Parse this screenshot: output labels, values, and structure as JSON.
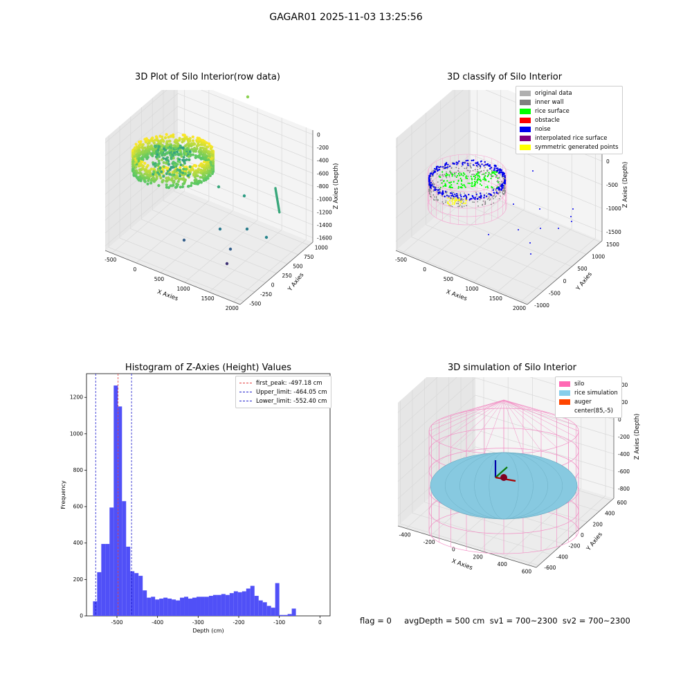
{
  "suptitle": "GAGAR01 2025-11-03 13:25:56",
  "status_text": "flag = 0     avgDepth = 500 cm  sv1 = 700~2300  sv2 = 700~2300",
  "colors": {
    "hist_bar": "#5050f7",
    "first_peak_line": "#e33a3a",
    "limit_line": "#1a1acc",
    "pane": "#f2f2f2",
    "grid": "#d8d8d8",
    "silo_wire": "#f28cc3",
    "rice_sim": "#87c9e0"
  },
  "chart_data": [
    {
      "type": "scatter",
      "projection": "3d",
      "title": "3D Plot of Silo Interior(row data)",
      "xlabel": "X Axies",
      "ylabel": "Y Axies",
      "zlabel": "Z Axies (Depth)",
      "xticks": [
        "-500",
        "0",
        "500",
        "1000",
        "1500",
        "2000"
      ],
      "yticks": [
        "-500",
        "-250",
        "0",
        "250",
        "500",
        "750",
        "1000"
      ],
      "zticks": [
        "0",
        "-200",
        "-400",
        "-600",
        "-800",
        "-1000",
        "-1200",
        "-1400",
        "-1600"
      ],
      "colormap": "viridis",
      "xlim": [
        -600,
        2100
      ],
      "ylim": [
        -600,
        1100
      ],
      "zlim": [
        -1650,
        50
      ]
    },
    {
      "type": "scatter",
      "projection": "3d",
      "title": "3D classify of Silo Interior",
      "xlabel": "X Axies",
      "ylabel": "Y Axies",
      "zlabel": "Z Axies (Depth)",
      "xticks": [
        "-500",
        "0",
        "500",
        "1000",
        "1500",
        "2000"
      ],
      "yticks": [
        "-1000",
        "-500",
        "0",
        "500",
        "1000",
        "1500"
      ],
      "zticks": [
        "500",
        "0",
        "-500",
        "-1000",
        "-1500"
      ],
      "legend": [
        {
          "label": "original data",
          "color": "#b0b0b0"
        },
        {
          "label": "inner wall",
          "color": "#808080"
        },
        {
          "label": "rice surface",
          "color": "#00ff00"
        },
        {
          "label": "obstacle",
          "color": "#ff0000"
        },
        {
          "label": "noise",
          "color": "#0000ee"
        },
        {
          "label": "interpolated rice surface",
          "color": "#800080"
        },
        {
          "label": "symmetric generated points",
          "color": "#ffff00"
        }
      ],
      "legend_loc": "upper right"
    },
    {
      "type": "bar",
      "title": "Histogram of Z-Axies (Height) Values",
      "xlabel": "Depth (cm)",
      "ylabel": "Frequency",
      "xlim": [
        -575,
        25
      ],
      "ylim": [
        0,
        1330
      ],
      "xticks": [
        -500,
        -400,
        -300,
        -200,
        -100,
        0
      ],
      "yticks": [
        0,
        200,
        400,
        600,
        800,
        1000,
        1200
      ],
      "bin_width": 10.2,
      "bin_start": -559.0,
      "values": [
        80,
        240,
        395,
        395,
        595,
        1265,
        1150,
        630,
        380,
        245,
        235,
        220,
        140,
        100,
        105,
        90,
        95,
        100,
        95,
        90,
        85,
        100,
        105,
        95,
        100,
        105,
        105,
        105,
        110,
        115,
        115,
        120,
        115,
        125,
        135,
        130,
        135,
        150,
        165,
        110,
        85,
        75,
        55,
        45,
        180,
        5,
        5,
        10,
        40
      ],
      "vlines": [
        {
          "label": "first_peak: -497.18 cm",
          "x": -497.18,
          "color": "#e33a3a"
        },
        {
          "label": "Upper_limit: -464.05 cm",
          "x": -464.05,
          "color": "#1a1acc"
        },
        {
          "label": "Lower_limit: -552.40 cm",
          "x": -552.4,
          "color": "#1a1acc"
        }
      ],
      "legend_loc": "upper right"
    },
    {
      "type": "surface",
      "projection": "3d",
      "title": "3D simulation of Silo Interior",
      "xlabel": "X Axies",
      "ylabel": "Y Axies",
      "zlabel": "Z Axies (Depth)",
      "xticks": [
        "-400",
        "-200",
        "0",
        "200",
        "400",
        "600"
      ],
      "yticks": [
        "-600",
        "-400",
        "-200",
        "0",
        "200",
        "400",
        "600"
      ],
      "zticks": [
        "400",
        "200",
        "0",
        "-200",
        "-400",
        "-600",
        "-800"
      ],
      "legend": [
        {
          "label": "silo",
          "color": "#ff69b4"
        },
        {
          "label": "rice simulation",
          "color": "#87ceeb"
        },
        {
          "label": "auger",
          "color": "#ff4500"
        },
        {
          "label": "center(85,-5)",
          "color": ""
        }
      ],
      "legend_loc": "upper right"
    }
  ]
}
